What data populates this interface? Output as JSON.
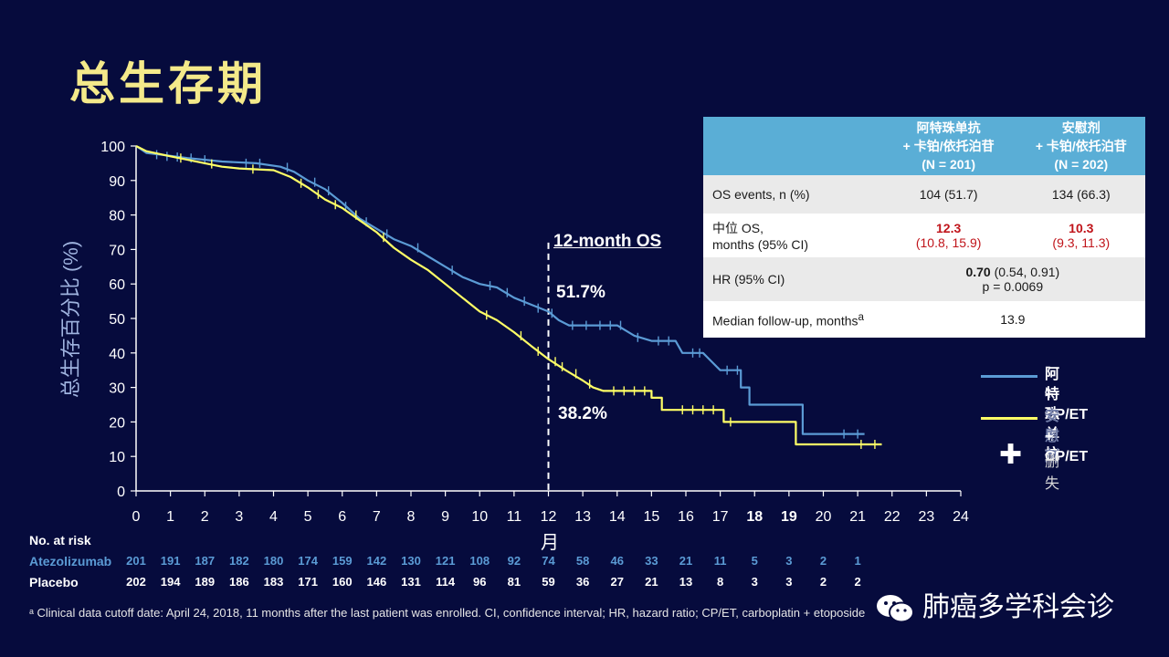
{
  "slide": {
    "title": "总生存期"
  },
  "colors": {
    "background": "#060b3d",
    "atezolizumab": "#5b9bd5",
    "placebo": "#ffff66",
    "title": "#f4e98a",
    "table_header": "#5aaed6"
  },
  "chart_data": {
    "type": "line",
    "ylabel": "总生存百分比 (%)",
    "xlabel": "月",
    "xlim": [
      0,
      24
    ],
    "ylim": [
      0,
      100
    ],
    "x_ticks": [
      "0",
      "1",
      "2",
      "3",
      "4",
      "5",
      "6",
      "7",
      "8",
      "9",
      "10",
      "11",
      "12",
      "13",
      "14",
      "15",
      "16",
      "17",
      "18",
      "19",
      "20",
      "21",
      "22",
      "23",
      "24"
    ],
    "y_ticks": [
      "0",
      "10",
      "20",
      "30",
      "40",
      "50",
      "60",
      "70",
      "80",
      "90",
      "100"
    ],
    "marker_line": {
      "x": 12,
      "label": "12-month OS"
    },
    "annotations": {
      "atezolizumab_12m": "51.7%",
      "placebo_12m": "38.2%"
    },
    "series": [
      {
        "name": "阿特珠单抗 + CP/ET",
        "color": "#5b9bd5",
        "points": [
          [
            0,
            100
          ],
          [
            0.3,
            98
          ],
          [
            0.7,
            97.5
          ],
          [
            1.5,
            96.5
          ],
          [
            2.5,
            95.5
          ],
          [
            3.5,
            95
          ],
          [
            4.2,
            94
          ],
          [
            4.6,
            92.5
          ],
          [
            5.0,
            90
          ],
          [
            5.5,
            87.5
          ],
          [
            6.0,
            83.5
          ],
          [
            6.5,
            79
          ],
          [
            7.0,
            76
          ],
          [
            7.5,
            73
          ],
          [
            8.0,
            71
          ],
          [
            8.5,
            68
          ],
          [
            9.0,
            65
          ],
          [
            9.5,
            62
          ],
          [
            10.0,
            60
          ],
          [
            10.5,
            59
          ],
          [
            11.0,
            56
          ],
          [
            11.5,
            54
          ],
          [
            12.0,
            52
          ],
          [
            12.3,
            49.5
          ],
          [
            12.6,
            48
          ],
          [
            13.0,
            48
          ],
          [
            14.0,
            48
          ],
          [
            14.5,
            45
          ],
          [
            15.0,
            43.5
          ],
          [
            15.7,
            43.5
          ],
          [
            15.9,
            40
          ],
          [
            16.5,
            40
          ],
          [
            16.7,
            38
          ],
          [
            17.0,
            35
          ],
          [
            17.6,
            35
          ],
          [
            17.6,
            30
          ],
          [
            17.85,
            30
          ],
          [
            17.85,
            25
          ],
          [
            19.4,
            25
          ],
          [
            19.4,
            16.5
          ],
          [
            21.2,
            16.5
          ]
        ],
        "censors": [
          [
            0.6,
            97.5
          ],
          [
            0.9,
            97
          ],
          [
            1.2,
            96.8
          ],
          [
            1.6,
            96.5
          ],
          [
            2.0,
            96
          ],
          [
            3.2,
            95
          ],
          [
            3.6,
            95
          ],
          [
            4.4,
            93.8
          ],
          [
            5.2,
            89.5
          ],
          [
            5.6,
            87
          ],
          [
            6.1,
            82.5
          ],
          [
            6.7,
            78
          ],
          [
            7.3,
            74.5
          ],
          [
            8.2,
            70.5
          ],
          [
            9.2,
            64
          ],
          [
            10.3,
            59.5
          ],
          [
            10.8,
            57.5
          ],
          [
            11.3,
            55
          ],
          [
            11.7,
            53
          ],
          [
            12.1,
            51.5
          ],
          [
            12.7,
            48
          ],
          [
            13.1,
            48
          ],
          [
            13.5,
            48
          ],
          [
            13.8,
            48
          ],
          [
            14.1,
            48
          ],
          [
            14.6,
            44.5
          ],
          [
            15.2,
            43.5
          ],
          [
            15.5,
            43.5
          ],
          [
            16.2,
            40
          ],
          [
            16.4,
            40
          ],
          [
            17.2,
            35
          ],
          [
            17.5,
            35
          ],
          [
            20.6,
            16.5
          ],
          [
            21.0,
            16.5
          ]
        ]
      },
      {
        "name": "安慰剂 + CP/ET",
        "color": "#ffff66",
        "points": [
          [
            0,
            100
          ],
          [
            0.3,
            98.5
          ],
          [
            1.0,
            97
          ],
          [
            1.5,
            96
          ],
          [
            2.0,
            95
          ],
          [
            2.5,
            94
          ],
          [
            3.0,
            93.5
          ],
          [
            4.0,
            93
          ],
          [
            4.5,
            91
          ],
          [
            5.0,
            88
          ],
          [
            5.5,
            84.5
          ],
          [
            6.0,
            82
          ],
          [
            6.5,
            78.5
          ],
          [
            7.0,
            75
          ],
          [
            7.5,
            70.5
          ],
          [
            8.0,
            67
          ],
          [
            8.5,
            64
          ],
          [
            9.0,
            60
          ],
          [
            9.5,
            56
          ],
          [
            10.0,
            52
          ],
          [
            10.5,
            49.5
          ],
          [
            11.0,
            46
          ],
          [
            11.5,
            42
          ],
          [
            12.0,
            38.2
          ],
          [
            12.5,
            35
          ],
          [
            13.0,
            32
          ],
          [
            13.3,
            30
          ],
          [
            13.6,
            29
          ],
          [
            15.0,
            29
          ],
          [
            15.0,
            27
          ],
          [
            15.3,
            27
          ],
          [
            15.3,
            23.5
          ],
          [
            17.1,
            23.5
          ],
          [
            17.1,
            20
          ],
          [
            19.2,
            20
          ],
          [
            19.2,
            13.5
          ],
          [
            21.7,
            13.5
          ]
        ],
        "censors": [
          [
            1.3,
            96.5
          ],
          [
            2.2,
            94.8
          ],
          [
            3.4,
            93.3
          ],
          [
            4.8,
            89.2
          ],
          [
            5.3,
            86
          ],
          [
            5.8,
            83
          ],
          [
            6.4,
            80
          ],
          [
            7.2,
            73.5
          ],
          [
            10.2,
            51
          ],
          [
            11.2,
            45
          ],
          [
            11.7,
            40.5
          ],
          [
            12.2,
            37.5
          ],
          [
            12.4,
            36
          ],
          [
            12.8,
            34
          ],
          [
            13.2,
            31
          ],
          [
            13.9,
            29
          ],
          [
            14.2,
            29
          ],
          [
            14.5,
            29
          ],
          [
            14.8,
            29
          ],
          [
            15.9,
            23.5
          ],
          [
            16.2,
            23.5
          ],
          [
            16.5,
            23.5
          ],
          [
            16.8,
            23.5
          ],
          [
            17.3,
            20
          ],
          [
            21.1,
            13.5
          ],
          [
            21.5,
            13.5
          ]
        ]
      }
    ]
  },
  "summary_table": {
    "headers": [
      "",
      "阿特珠单抗 + 卡铂/依托泊苷 (N = 201)",
      "安慰剂 + 卡铂/依托泊苷 (N = 202)"
    ],
    "header_lines": {
      "atezo": [
        "阿特珠单抗",
        "+ 卡铂/依托泊苷",
        "(N = 201)"
      ],
      "placebo": [
        "安慰剂",
        "+ 卡铂/依托泊苷",
        "(N = 202)"
      ]
    },
    "rows": {
      "os_events": {
        "label": "OS events, n (%)",
        "atezo": "104 (51.7)",
        "placebo": "134 (66.3)"
      },
      "median_os": {
        "label_1": "中位 OS,",
        "label_2": "months (95% CI)",
        "atezo_value": "12.3",
        "atezo_ci": "(10.8, 15.9)",
        "placebo_value": "10.3",
        "placebo_ci": "(9.3, 11.3)"
      },
      "hr": {
        "label": "HR (95% CI)",
        "value": "0.70",
        "ci": "(0.54, 0.91)",
        "p": "p = 0.0069"
      },
      "follow_up": {
        "label": "Median follow-up, months",
        "sup": "a",
        "value": "13.9"
      }
    }
  },
  "legend": {
    "atezo_line1": "阿特珠单抗",
    "atezo_line2": "+ CP/ET",
    "placebo_line1": "安慰剂",
    "placebo_line2": "+ CP/ET",
    "censor_symbol": "✚",
    "censor_label": "删失"
  },
  "risk_table": {
    "title": "No. at risk",
    "rows": [
      {
        "name": "Atezolizumab",
        "color": "#5b9bd5",
        "values": [
          "201",
          "191",
          "187",
          "182",
          "180",
          "174",
          "159",
          "142",
          "130",
          "121",
          "108",
          "92",
          "74",
          "58",
          "46",
          "33",
          "21",
          "11",
          "5",
          "3",
          "2",
          "1"
        ]
      },
      {
        "name": "Placebo",
        "color": "#ffffff",
        "values": [
          "202",
          "194",
          "189",
          "186",
          "183",
          "171",
          "160",
          "146",
          "131",
          "114",
          "96",
          "81",
          "59",
          "36",
          "27",
          "21",
          "13",
          "8",
          "3",
          "3",
          "2",
          "2"
        ]
      }
    ]
  },
  "footnote": "ᵃ Clinical data cutoff date: April 24, 2018, 11 months after the last patient was enrolled. CI, confidence interval; HR, hazard ratio; CP/ET, carboplatin + etoposide",
  "watermark": "肺癌多学科会诊"
}
